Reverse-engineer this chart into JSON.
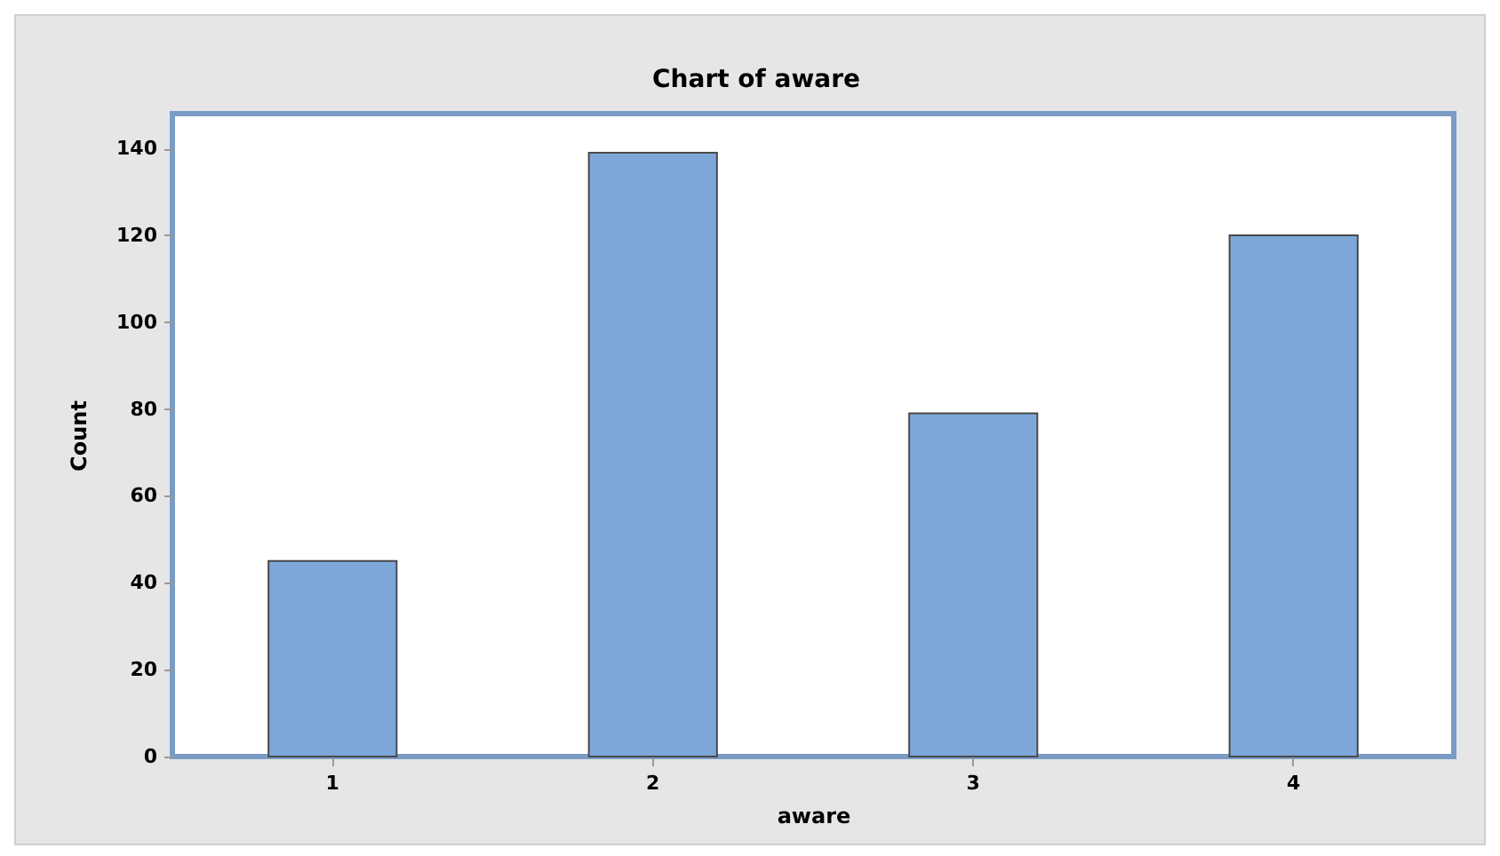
{
  "chart_data": {
    "type": "bar",
    "title": "Chart of aware",
    "xlabel": "aware",
    "ylabel": "Count",
    "categories": [
      "1",
      "2",
      "3",
      "4"
    ],
    "values": [
      45,
      139,
      79,
      120
    ],
    "color": "#7da7d9",
    "ylim": [
      0,
      148
    ],
    "yticks": [
      0,
      20,
      40,
      60,
      80,
      100,
      120,
      140
    ],
    "grid": false
  }
}
